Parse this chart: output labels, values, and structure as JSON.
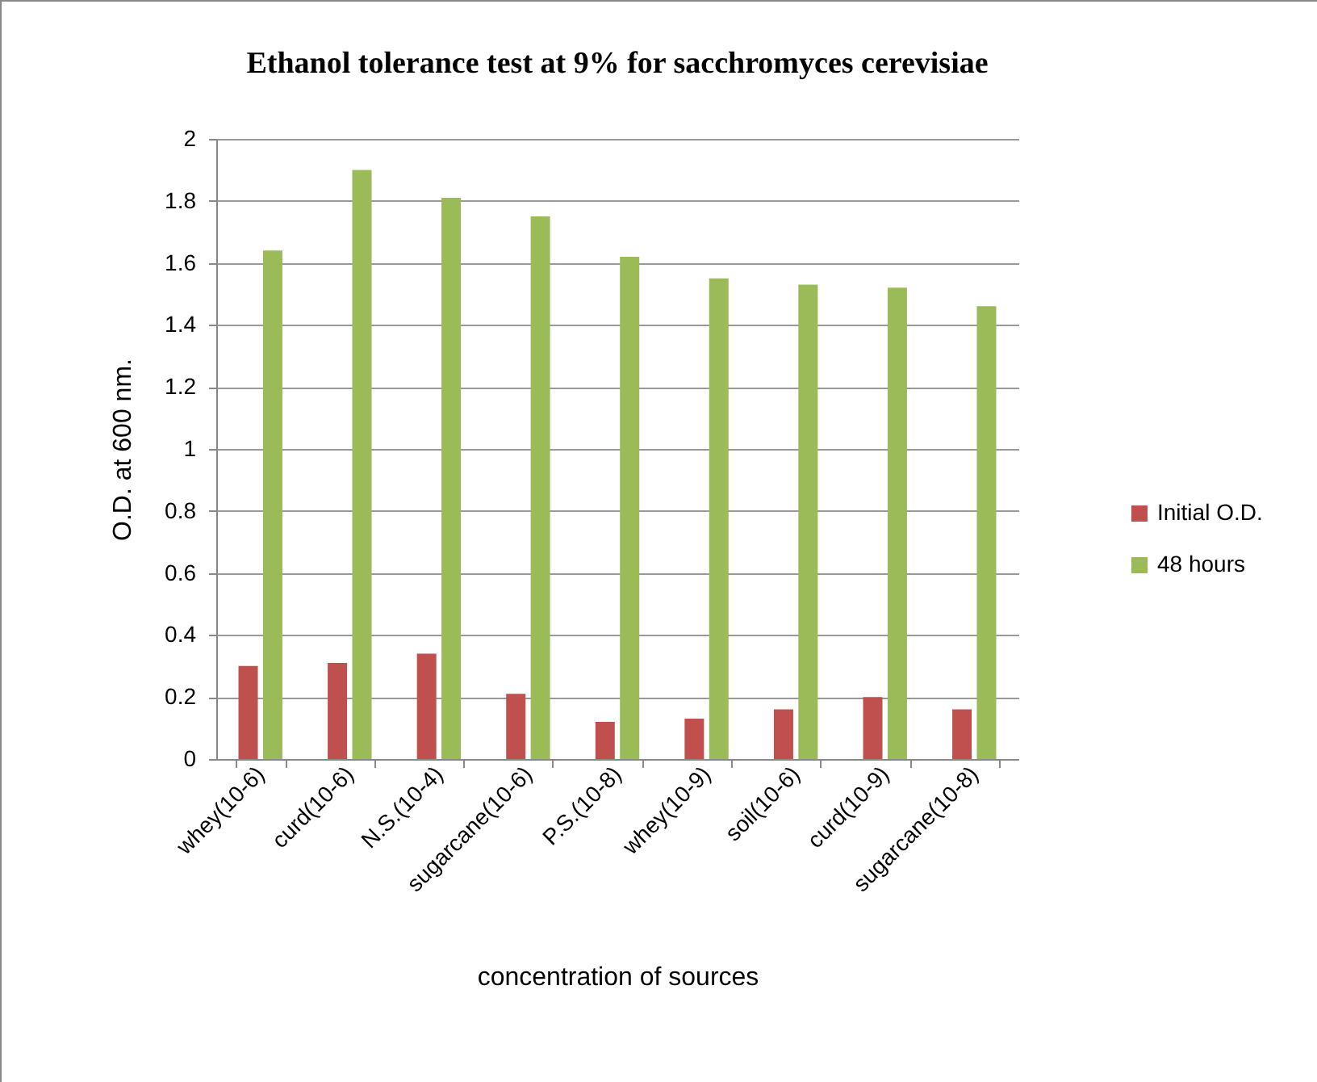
{
  "chart_data": {
    "type": "bar",
    "title": "Ethanol  tolerance test  at  9% for sacchromyces cerevisiae",
    "xlabel": "concentration of sources",
    "ylabel": "O.D. at 600 nm.",
    "categories": [
      "whey(10-6)",
      "curd(10-6)",
      "N.S.(10-4)",
      "sugarcane(10-6)",
      "P.S.(10-8)",
      "whey(10-9)",
      "soil(10-6)",
      "curd(10-9)",
      "sugarcane(10-8)"
    ],
    "series": [
      {
        "name": "Initial O.D.",
        "color": "#c0504d",
        "values": [
          0.3,
          0.31,
          0.34,
          0.21,
          0.12,
          0.13,
          0.16,
          0.2,
          0.16
        ]
      },
      {
        "name": "48 hours",
        "color": "#9bbb59",
        "values": [
          1.64,
          1.9,
          1.81,
          1.75,
          1.62,
          1.55,
          1.53,
          1.52,
          1.46
        ]
      }
    ],
    "ylim": [
      0,
      2
    ],
    "yticks": [
      0,
      0.2,
      0.4,
      0.6,
      0.8,
      1,
      1.2,
      1.4,
      1.6,
      1.8,
      2
    ],
    "grid": "y",
    "legend": "right"
  }
}
